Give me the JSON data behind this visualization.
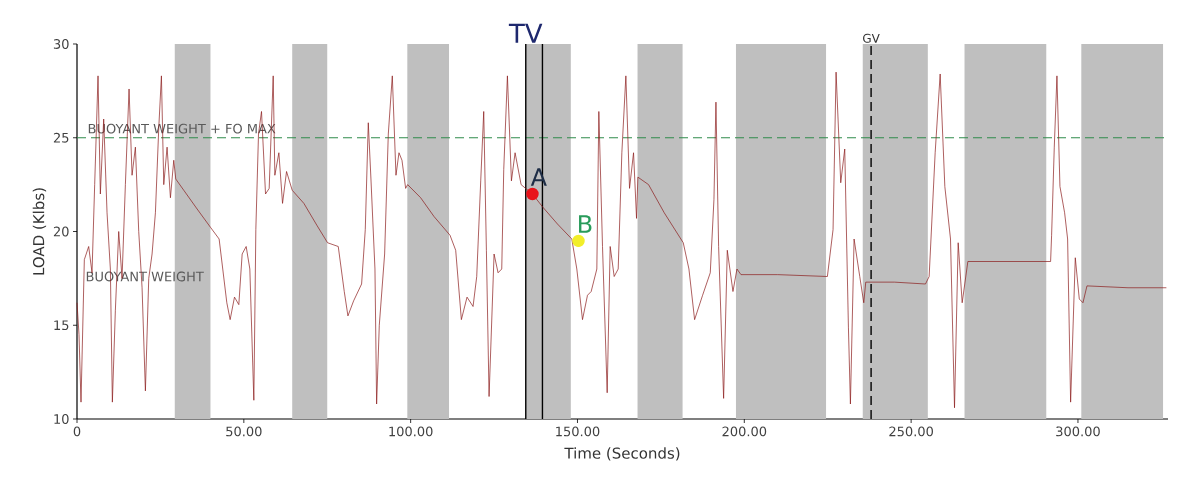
{
  "chart_data": {
    "type": "line",
    "xlabel": "Time (Seconds)",
    "ylabel": "LOAD (Klbs)",
    "xlim": [
      0,
      327
    ],
    "ylim": [
      10,
      30
    ],
    "xticks": [
      0,
      {
        "value": 50,
        "label": "50.00"
      },
      {
        "value": 100,
        "label": "100.00"
      },
      {
        "value": 150,
        "label": "150.00"
      },
      {
        "value": 200,
        "label": "200.00"
      },
      {
        "value": 250,
        "label": "250.00"
      },
      {
        "value": 300,
        "label": "300.00"
      }
    ],
    "yticks": [
      10,
      15,
      20,
      25,
      30
    ],
    "line_style": "solid",
    "series": [
      {
        "color": "#8b1a1a",
        "x": [
          0,
          0.6,
          1.2,
          2.2,
          3.5,
          4.5,
          5.3,
          6.3,
          7,
          8,
          9,
          10,
          10.6,
          11.5,
          12.5,
          13.5,
          14.5,
          15.6,
          16.5,
          17.5,
          18.5,
          19.5,
          20.5,
          21.5,
          22.5,
          23.5,
          24.5,
          25.3,
          26,
          27,
          28,
          29,
          29.6,
          32,
          36,
          40.1,
          42.6,
          44.9,
          45.9,
          47.2,
          48.5,
          49.5,
          50.7,
          51.8,
          53,
          53.6,
          54.4,
          55.3,
          56.5,
          57.6,
          58.8,
          59.3,
          60.5,
          61.6,
          62.8,
          64.5,
          68,
          72,
          75.1,
          78.3,
          80.1,
          81.2,
          82.9,
          85.3,
          86.4,
          87.3,
          88.1,
          89.3,
          89.8,
          90.6,
          92.2,
          93.3,
          94.5,
          95.6,
          96.5,
          97.4,
          98.5,
          99.1,
          103,
          107,
          111.8,
          113.5,
          115.2,
          116.9,
          118.7,
          119.8,
          121,
          121.9,
          122.7,
          123.5,
          125,
          126.2,
          127.3,
          127.9,
          129,
          130.2,
          131.3,
          133.1,
          136.5,
          139.6,
          144,
          148.3,
          149.8,
          151.5,
          153,
          154.1,
          155.8,
          156.4,
          157.5,
          158.9,
          159.8,
          161,
          162.2,
          163.3,
          164.5,
          165.6,
          166.8,
          167.7,
          168.1,
          171.3,
          176,
          181.7,
          183.4,
          185.1,
          187.5,
          189.8,
          190.9,
          191.5,
          192.3,
          193.8,
          194.9,
          196.6,
          197.8,
          199,
          210,
          224.9,
          226.6,
          227.5,
          228.9,
          230.1,
          231.2,
          231.8,
          232.9,
          234.6,
          235.8,
          236.4,
          245,
          254.3,
          255.4,
          257.2,
          258.7,
          260.1,
          261.8,
          263,
          264.1,
          265.3,
          267,
          280,
          291.8,
          292.1,
          292.9,
          293.7,
          294.6,
          296,
          296.9,
          297.8,
          299.2,
          300.4,
          301.5,
          302.7,
          315,
          326.5
        ],
        "values": [
          16.2,
          14.5,
          10.9,
          18.5,
          19.2,
          17.8,
          22.5,
          28.3,
          22,
          26,
          21,
          18,
          10.9,
          15.8,
          20,
          17.5,
          22.5,
          27.6,
          23,
          24.5,
          20,
          17,
          11.5,
          17.5,
          18.8,
          21,
          25.5,
          28.3,
          22.5,
          24.5,
          21.8,
          23.8,
          22.8,
          22.2,
          21.2,
          20.2,
          19.6,
          16.2,
          15.3,
          16.5,
          16.1,
          18.8,
          19.2,
          18,
          11,
          20.1,
          25.2,
          26.4,
          22,
          22.3,
          28.3,
          23,
          24.2,
          21.5,
          23.2,
          22.2,
          21.5,
          20.3,
          19.4,
          19.2,
          16.8,
          15.5,
          16.3,
          17.2,
          20.1,
          25.8,
          22.8,
          18,
          10.8,
          15,
          18.8,
          25.2,
          28.3,
          23,
          24.2,
          23.8,
          22.3,
          22.5,
          21.8,
          20.8,
          19.8,
          19,
          15.3,
          16.5,
          16,
          17.6,
          22.7,
          26.4,
          19,
          11.2,
          18.8,
          17.8,
          18,
          23.3,
          28.3,
          22.7,
          24.2,
          22.5,
          22.0,
          21.3,
          20.4,
          19.6,
          18,
          15.3,
          16.6,
          16.8,
          18,
          26.4,
          19.2,
          11.4,
          19.2,
          17.6,
          18,
          24.2,
          28.3,
          22.3,
          24.2,
          20.7,
          22.9,
          22.5,
          21,
          19.4,
          18,
          15.3,
          16.6,
          17.8,
          21.7,
          26.9,
          19.2,
          11.1,
          19,
          16.8,
          18,
          17.7,
          17.7,
          17.6,
          20.1,
          28.5,
          22.6,
          24.4,
          14.9,
          10.8,
          19.6,
          17.6,
          16.2,
          17.3,
          17.3,
          17.2,
          17.6,
          24.2,
          28.4,
          22.4,
          19.6,
          10.6,
          19.4,
          16.2,
          18.4,
          18.4,
          18.4,
          19.8,
          24.5,
          28.3,
          22.4,
          21,
          19.6,
          10.9,
          18.6,
          16.4,
          16.2,
          17.1,
          17.0,
          17.0
        ]
      },
      {
        "type": "scatter",
        "name": "A",
        "color": "#e8141b",
        "x": [
          136.5
        ],
        "values": [
          22.0
        ]
      },
      {
        "type": "scatter",
        "name": "B",
        "color": "#f2ee2a",
        "x": [
          150.3
        ],
        "values": [
          19.5
        ]
      }
    ],
    "bands": [
      {
        "axis": "x",
        "from": 29.3,
        "to": 40
      },
      {
        "axis": "x",
        "from": 64.5,
        "to": 75
      },
      {
        "axis": "x",
        "from": 99,
        "to": 111.5
      },
      {
        "axis": "x",
        "from": 134.5,
        "to": 148
      },
      {
        "axis": "x",
        "from": 168,
        "to": 181.5
      },
      {
        "axis": "x",
        "from": 197.5,
        "to": 224.5
      },
      {
        "axis": "x",
        "from": 235.5,
        "to": 255
      },
      {
        "axis": "x",
        "from": 266,
        "to": 290.5
      },
      {
        "axis": "x",
        "from": 301,
        "to": 325.5
      }
    ],
    "ref_lines": [
      {
        "axis": "y",
        "value": 25,
        "label": "BUOYANT WEIGHT + FO MAX",
        "color": "#2e8b4a",
        "line_style": "dashed"
      },
      {
        "axis": "x",
        "value": 238,
        "label": "GV",
        "color": "#000000",
        "line_style": "dashed"
      },
      {
        "axis": "x",
        "value": 134.5,
        "label": "TV",
        "color": "#000000",
        "line_style": "solid"
      },
      {
        "axis": "x",
        "value": 139.5,
        "color": "#000000",
        "line_style": "solid"
      }
    ],
    "annotations": [
      {
        "text": "BUOYANT WEIGHT",
        "x": 2.5,
        "y": 17.6
      }
    ]
  }
}
